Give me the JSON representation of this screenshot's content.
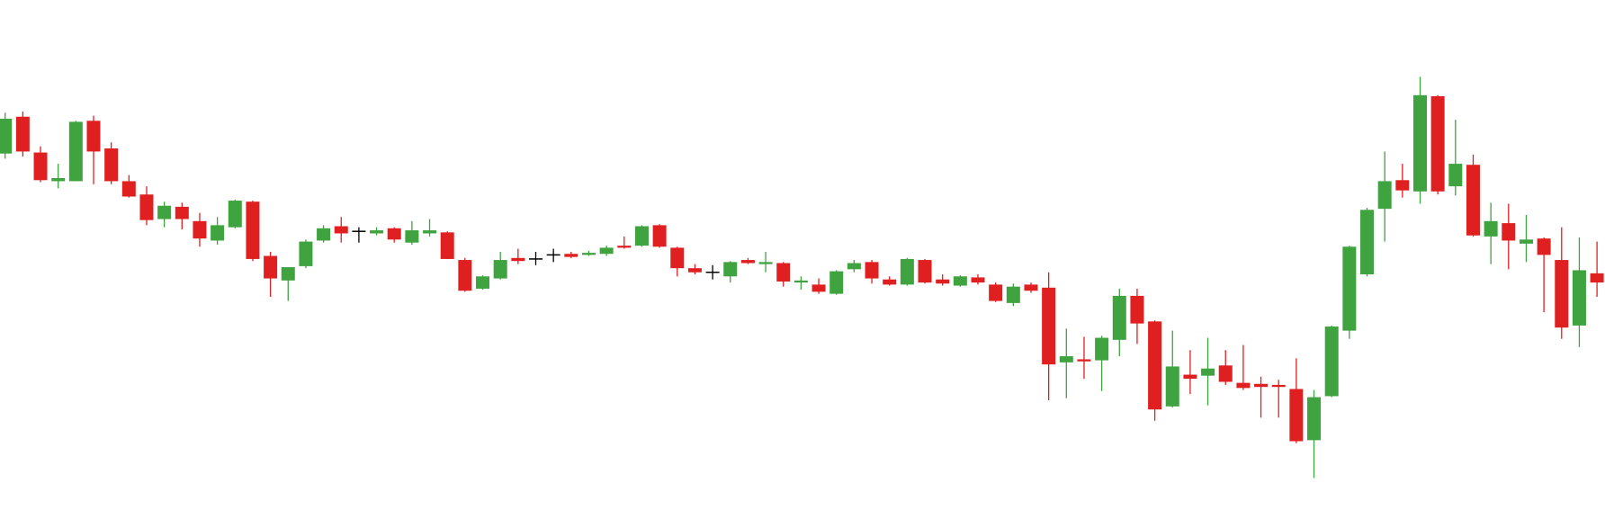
{
  "chart_data": {
    "type": "candlestick",
    "up_color": "#3fa33f",
    "down_color": "#e02020",
    "doji_color": "#000000",
    "ylim": [
      0,
      507
    ],
    "open": [
      357,
      393,
      358,
      330,
      330,
      389,
      362,
      330,
      317,
      293,
      305,
      291,
      272,
      285,
      310,
      257,
      233,
      247,
      272,
      286,
      281,
      279,
      284,
      270,
      279,
      280,
      253,
      225,
      235,
      255,
      254,
      258,
      259,
      258,
      259,
      267,
      267,
      287,
      265,
      245,
      241,
      237,
      253,
      249,
      250,
      231,
      229,
      220,
      244,
      251,
      234,
      229,
      253,
      234,
      228,
      236,
      229,
      211,
      229,
      226,
      153,
      156,
      155,
      175,
      218,
      193,
      110,
      141,
      140,
      150,
      133,
      132,
      131,
      127,
      77,
      120,
      184,
      239,
      303,
      331,
      320,
      413,
      325,
      346,
      276,
      289,
      269,
      274,
      253,
      189,
      240
    ],
    "high": [
      397,
      398,
      364,
      347,
      389,
      394,
      368,
      336,
      325,
      310,
      309,
      299,
      295,
      312,
      311,
      261,
      246,
      273,
      287,
      295,
      285,
      285,
      285,
      291,
      293,
      281,
      255,
      238,
      261,
      264,
      261,
      264,
      261,
      262,
      267,
      276,
      287,
      288,
      266,
      249,
      248,
      252,
      255,
      261,
      251,
      237,
      235,
      243,
      253,
      253,
      237,
      255,
      254,
      239,
      238,
      239,
      231,
      230,
      231,
      241,
      186,
      178,
      179,
      225,
      225,
      194,
      184,
      165,
      177,
      165,
      170,
      139,
      136,
      157,
      126,
      189,
      267,
      304,
      359,
      347,
      432,
      414,
      390,
      356,
      309,
      308,
      297,
      275,
      285,
      275,
      271
    ],
    "low": [
      352,
      354,
      329,
      323,
      330,
      327,
      327,
      314,
      287,
      285,
      283,
      266,
      268,
      284,
      252,
      217,
      213,
      245,
      270,
      270,
      270,
      277,
      270,
      268,
      276,
      254,
      222,
      224,
      234,
      249,
      248,
      251,
      255,
      257,
      257,
      264,
      266,
      265,
      237,
      239,
      234,
      231,
      249,
      241,
      227,
      224,
      220,
      219,
      241,
      230,
      228,
      228,
      230,
      228,
      227,
      229,
      212,
      208,
      221,
      116,
      118,
      137,
      125,
      159,
      171,
      96,
      109,
      122,
      111,
      131,
      126,
      99,
      99,
      74,
      40,
      119,
      176,
      237,
      271,
      314,
      308,
      317,
      316,
      276,
      249,
      244,
      251,
      202,
      176,
      168,
      217
    ],
    "close": [
      391,
      359,
      331,
      333,
      388,
      359,
      330,
      315,
      292,
      306,
      293,
      274,
      287,
      311,
      254,
      235,
      246,
      271,
      284,
      279,
      281,
      282,
      273,
      282,
      282,
      254,
      223,
      237,
      253,
      252,
      254,
      258,
      256,
      260,
      265,
      265,
      286,
      266,
      245,
      241,
      241,
      251,
      250,
      251,
      232,
      233,
      222,
      242,
      250,
      235,
      229,
      254,
      231,
      230,
      237,
      231,
      213,
      227,
      223,
      151,
      159,
      154,
      177,
      218,
      191,
      107,
      149,
      137,
      147,
      134,
      128,
      129,
      129,
      76,
      119,
      188,
      266,
      302,
      330,
      321,
      414,
      320,
      347,
      277,
      291,
      272,
      273,
      258,
      187,
      243,
      231
    ]
  }
}
